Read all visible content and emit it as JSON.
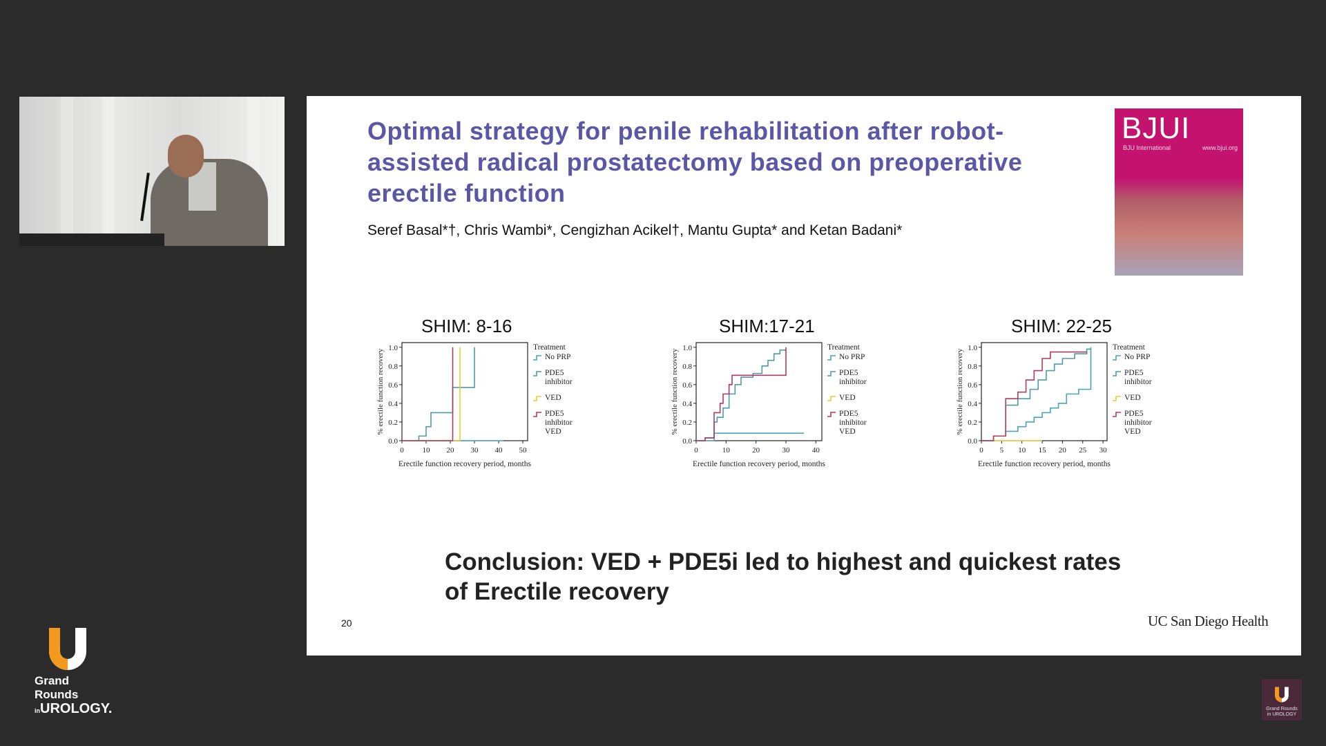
{
  "slide": {
    "title": "Optimal strategy for penile rehabilitation after robot-assisted radical prostatectomy based on preoperative erectile function",
    "authors": "Seref Basal*†, Chris Wambi*, Cengizhan Acikel†, Mantu Gupta* and Ketan Badani*",
    "journal_cover": {
      "name": "BJUI",
      "subtitle": "BJU International",
      "url": "www.bjui.org"
    },
    "conclusion": "Conclusion: VED + PDE5i led to highest and quickest rates of Erectile recovery",
    "slide_number": "20",
    "institution": "UC San Diego Health"
  },
  "branding": {
    "line1": "Grand Rounds",
    "line2_prefix": "in",
    "line2": "UROLOGY.",
    "mini_line1": "Grand Rounds",
    "mini_line2": "in UROLOGY"
  },
  "colors": {
    "title": "#5b57a6",
    "logo_orange": "#f39a1e",
    "no_prp": "#4aa3c1",
    "pde5": "#4f9aa8",
    "ved": "#e9cf2e",
    "pde5_ved": "#b23a5c"
  },
  "legend": {
    "title": "Treatment",
    "entries": [
      {
        "key": "no_prp",
        "lines": [
          "No PRP"
        ]
      },
      {
        "key": "pde5",
        "lines": [
          "PDE5",
          "inhibitor"
        ]
      },
      {
        "key": "ved",
        "lines": [
          "VED"
        ]
      },
      {
        "key": "pde5_ved",
        "lines": [
          "PDE5",
          "inhibitor",
          "VED"
        ]
      }
    ]
  },
  "chart_data": [
    {
      "type": "line",
      "title": "SHIM: 8-16",
      "xlabel": "Erectile function recovery period, months",
      "ylabel": "% erectile function recovery",
      "xlim": [
        0,
        52
      ],
      "ylim": [
        0,
        1.05
      ],
      "xticks": [
        0,
        10,
        20,
        30,
        40,
        50
      ],
      "yticks": [
        0.0,
        0.2,
        0.4,
        0.6,
        0.8,
        1.0
      ],
      "step": true,
      "series": [
        {
          "name": "No PRP",
          "key": "no_prp",
          "x": [
            0,
            42
          ],
          "y": [
            0,
            0
          ]
        },
        {
          "name": "PDE5 inhibitor",
          "key": "pde5",
          "x": [
            0,
            5,
            7,
            9,
            10,
            12,
            21,
            30,
            30
          ],
          "y": [
            0,
            0,
            0.05,
            0.05,
            0.15,
            0.3,
            0.57,
            0.57,
            1.0
          ]
        },
        {
          "name": "VED",
          "key": "ved",
          "x": [
            0,
            24,
            24
          ],
          "y": [
            0,
            0,
            1.0
          ]
        },
        {
          "name": "PDE5 inhibitor VED",
          "key": "pde5_ved",
          "x": [
            0,
            21,
            21
          ],
          "y": [
            0,
            0,
            1.0
          ]
        }
      ]
    },
    {
      "type": "line",
      "title": "SHIM:17-21",
      "xlabel": "Erectile function recovery period, months",
      "ylabel": "% erectile function recovery",
      "xlim": [
        0,
        42
      ],
      "ylim": [
        0,
        1.05
      ],
      "xticks": [
        0,
        10,
        20,
        30,
        40
      ],
      "yticks": [
        0.0,
        0.2,
        0.4,
        0.6,
        0.8,
        1.0
      ],
      "step": true,
      "series": [
        {
          "name": "No PRP",
          "key": "no_prp",
          "x": [
            0,
            6,
            36
          ],
          "y": [
            0,
            0.08,
            0.08
          ]
        },
        {
          "name": "PDE5 inhibitor",
          "key": "pde5",
          "x": [
            0,
            3,
            6,
            7,
            9,
            11,
            13,
            15,
            19,
            22,
            24,
            26,
            28,
            30
          ],
          "y": [
            0,
            0.03,
            0.2,
            0.25,
            0.35,
            0.5,
            0.6,
            0.68,
            0.72,
            0.8,
            0.86,
            0.93,
            0.97,
            0.97
          ]
        },
        {
          "name": "VED",
          "key": "ved",
          "x": [],
          "y": []
        },
        {
          "name": "PDE5 inhibitor VED",
          "key": "pde5_ved",
          "x": [
            0,
            3,
            6,
            8,
            9,
            11,
            12,
            30,
            30
          ],
          "y": [
            0,
            0.03,
            0.3,
            0.4,
            0.5,
            0.6,
            0.7,
            0.7,
            1.0
          ]
        }
      ]
    },
    {
      "type": "line",
      "title": "SHIM: 22-25",
      "xlabel": "Erectile function recovery period, months",
      "ylabel": "% erectile function recovery",
      "xlim": [
        0,
        31
      ],
      "ylim": [
        0,
        1.05
      ],
      "xticks": [
        0,
        5,
        10,
        15,
        20,
        25,
        30
      ],
      "yticks": [
        0.0,
        0.2,
        0.4,
        0.6,
        0.8,
        1.0
      ],
      "step": true,
      "series": [
        {
          "name": "No PRP",
          "key": "no_prp",
          "x": [
            0,
            3,
            6,
            9,
            11,
            13,
            15,
            17,
            19,
            21,
            24,
            27,
            27
          ],
          "y": [
            0,
            0.05,
            0.1,
            0.15,
            0.2,
            0.25,
            0.3,
            0.35,
            0.4,
            0.5,
            0.55,
            0.55,
            1.0
          ]
        },
        {
          "name": "PDE5 inhibitor",
          "key": "pde5",
          "x": [
            0,
            3,
            6,
            9,
            12,
            14,
            16,
            18,
            20,
            23,
            26,
            27
          ],
          "y": [
            0,
            0.05,
            0.38,
            0.45,
            0.55,
            0.65,
            0.75,
            0.82,
            0.88,
            0.93,
            0.98,
            0.98
          ]
        },
        {
          "name": "VED",
          "key": "ved",
          "x": [
            3,
            15
          ],
          "y": [
            0,
            0
          ]
        },
        {
          "name": "PDE5 inhibitor VED",
          "key": "pde5_ved",
          "x": [
            0,
            3,
            6,
            9,
            11,
            13,
            15,
            17,
            26
          ],
          "y": [
            0,
            0.05,
            0.45,
            0.52,
            0.65,
            0.75,
            0.88,
            0.95,
            0.95
          ]
        }
      ]
    }
  ]
}
